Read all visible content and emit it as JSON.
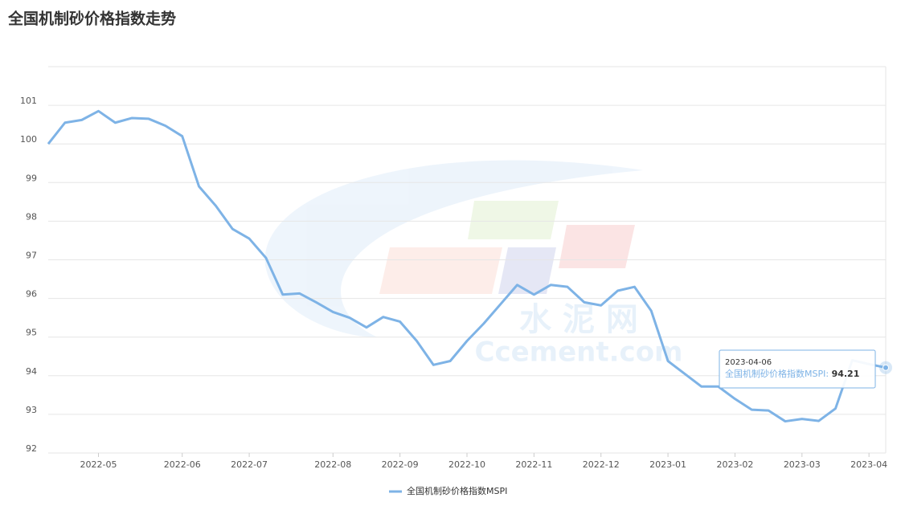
{
  "chart_data": {
    "type": "line",
    "title": "全国机制砂价格指数走势",
    "categories": [
      null,
      null,
      null,
      "2022-05",
      null,
      null,
      null,
      null,
      "2022-06",
      null,
      null,
      null,
      "2022-07",
      null,
      null,
      null,
      null,
      "2022-08",
      null,
      null,
      null,
      "2022-09",
      null,
      null,
      null,
      "2022-10",
      null,
      null,
      null,
      "2022-11",
      null,
      null,
      null,
      "2022-12",
      null,
      null,
      null,
      "2023-01",
      null,
      null,
      null,
      "2023-02",
      null,
      null,
      null,
      "2023-03",
      null,
      null,
      null,
      "2023-04",
      null
    ],
    "series": [
      {
        "name": "全国机制砂价格指数MSPI",
        "color": "#7eb3e6",
        "values": [
          100.0,
          100.55,
          100.62,
          100.85,
          100.55,
          100.67,
          100.65,
          100.47,
          100.2,
          98.9,
          98.4,
          97.8,
          97.55,
          97.05,
          96.1,
          96.13,
          95.9,
          95.65,
          95.5,
          95.25,
          95.52,
          95.4,
          94.9,
          94.28,
          94.38,
          94.9,
          95.35,
          95.85,
          96.35,
          96.1,
          96.35,
          96.3,
          95.9,
          95.82,
          96.2,
          96.3,
          95.68,
          94.38,
          94.05,
          93.72,
          93.72,
          93.4,
          93.12,
          93.1,
          92.82,
          92.88,
          92.83,
          93.15,
          94.4,
          94.3,
          94.21
        ]
      }
    ],
    "ylim": [
      92,
      102
    ],
    "yticks": [
      92,
      93,
      94,
      95,
      96,
      97,
      98,
      99,
      100,
      101
    ],
    "grid": true,
    "tooltip": {
      "date": "2023-04-06"
    },
    "watermark": [
      "水 泥 网",
      "Ccement.com"
    ]
  }
}
